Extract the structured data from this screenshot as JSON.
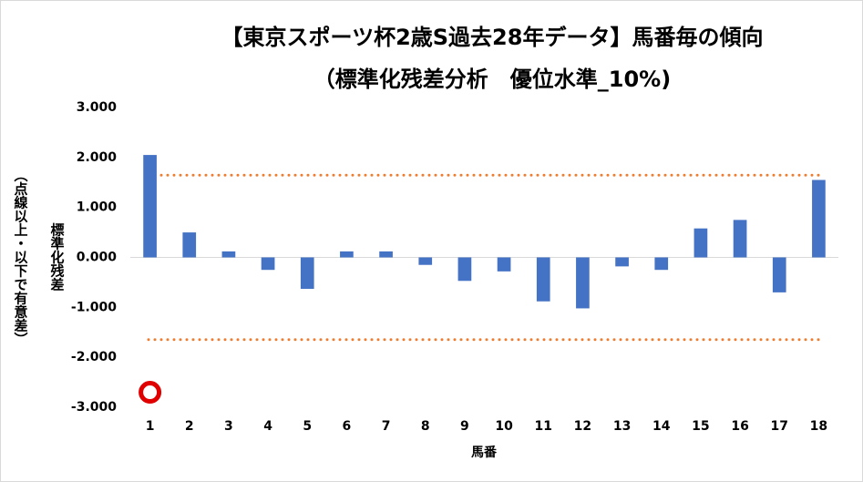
{
  "chart_data": {
    "type": "bar",
    "title": "【東京スポーツ杯2歳S過去28年データ】馬番毎の傾向",
    "subtitle": "（標準化残差分析　優位水準_10%)",
    "y_label": "標準化残差",
    "y_label_note": "（点線以上・以下で有意差）",
    "x_label": "馬番",
    "categories": [
      "1",
      "2",
      "3",
      "4",
      "5",
      "6",
      "7",
      "8",
      "9",
      "10",
      "11",
      "12",
      "13",
      "14",
      "15",
      "16",
      "17",
      "18"
    ],
    "values": [
      2.05,
      0.5,
      0.12,
      -0.25,
      -0.63,
      0.12,
      0.12,
      -0.15,
      -0.47,
      -0.28,
      -0.88,
      -1.02,
      -0.18,
      -0.25,
      0.58,
      0.75,
      -0.7,
      1.55
    ],
    "color": "#4472c4",
    "reference_lines": [
      1.645,
      -1.645
    ],
    "reference_color": "#ed7d31",
    "marker": {
      "category": "1",
      "value": -2.7,
      "color": "#e00000"
    },
    "ylim": [
      -3,
      3
    ],
    "yticks": [
      {
        "value": 3,
        "label": "3.000"
      },
      {
        "value": 2,
        "label": "2.000"
      },
      {
        "value": 1,
        "label": "1.000"
      },
      {
        "value": 0,
        "label": "0.000"
      },
      {
        "value": -1,
        "label": "-1.000"
      },
      {
        "value": -2,
        "label": "-2.000"
      },
      {
        "value": -3,
        "label": "-3.000"
      }
    ],
    "grid": false
  }
}
